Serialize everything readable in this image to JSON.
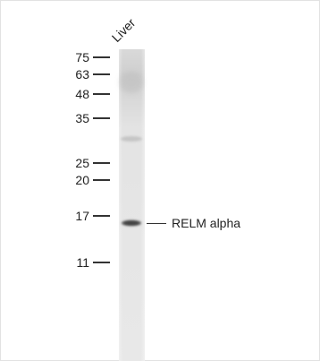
{
  "lane": {
    "label": "Liver"
  },
  "markers": [
    {
      "label": "75"
    },
    {
      "label": "63"
    },
    {
      "label": "48"
    },
    {
      "label": "35"
    },
    {
      "label": "25"
    },
    {
      "label": "20"
    },
    {
      "label": "17"
    },
    {
      "label": "11"
    }
  ],
  "band": {
    "label": "RELM alpha"
  },
  "colors": {
    "lane_background": "#dedede",
    "band": "#555555",
    "text": "#222222"
  }
}
